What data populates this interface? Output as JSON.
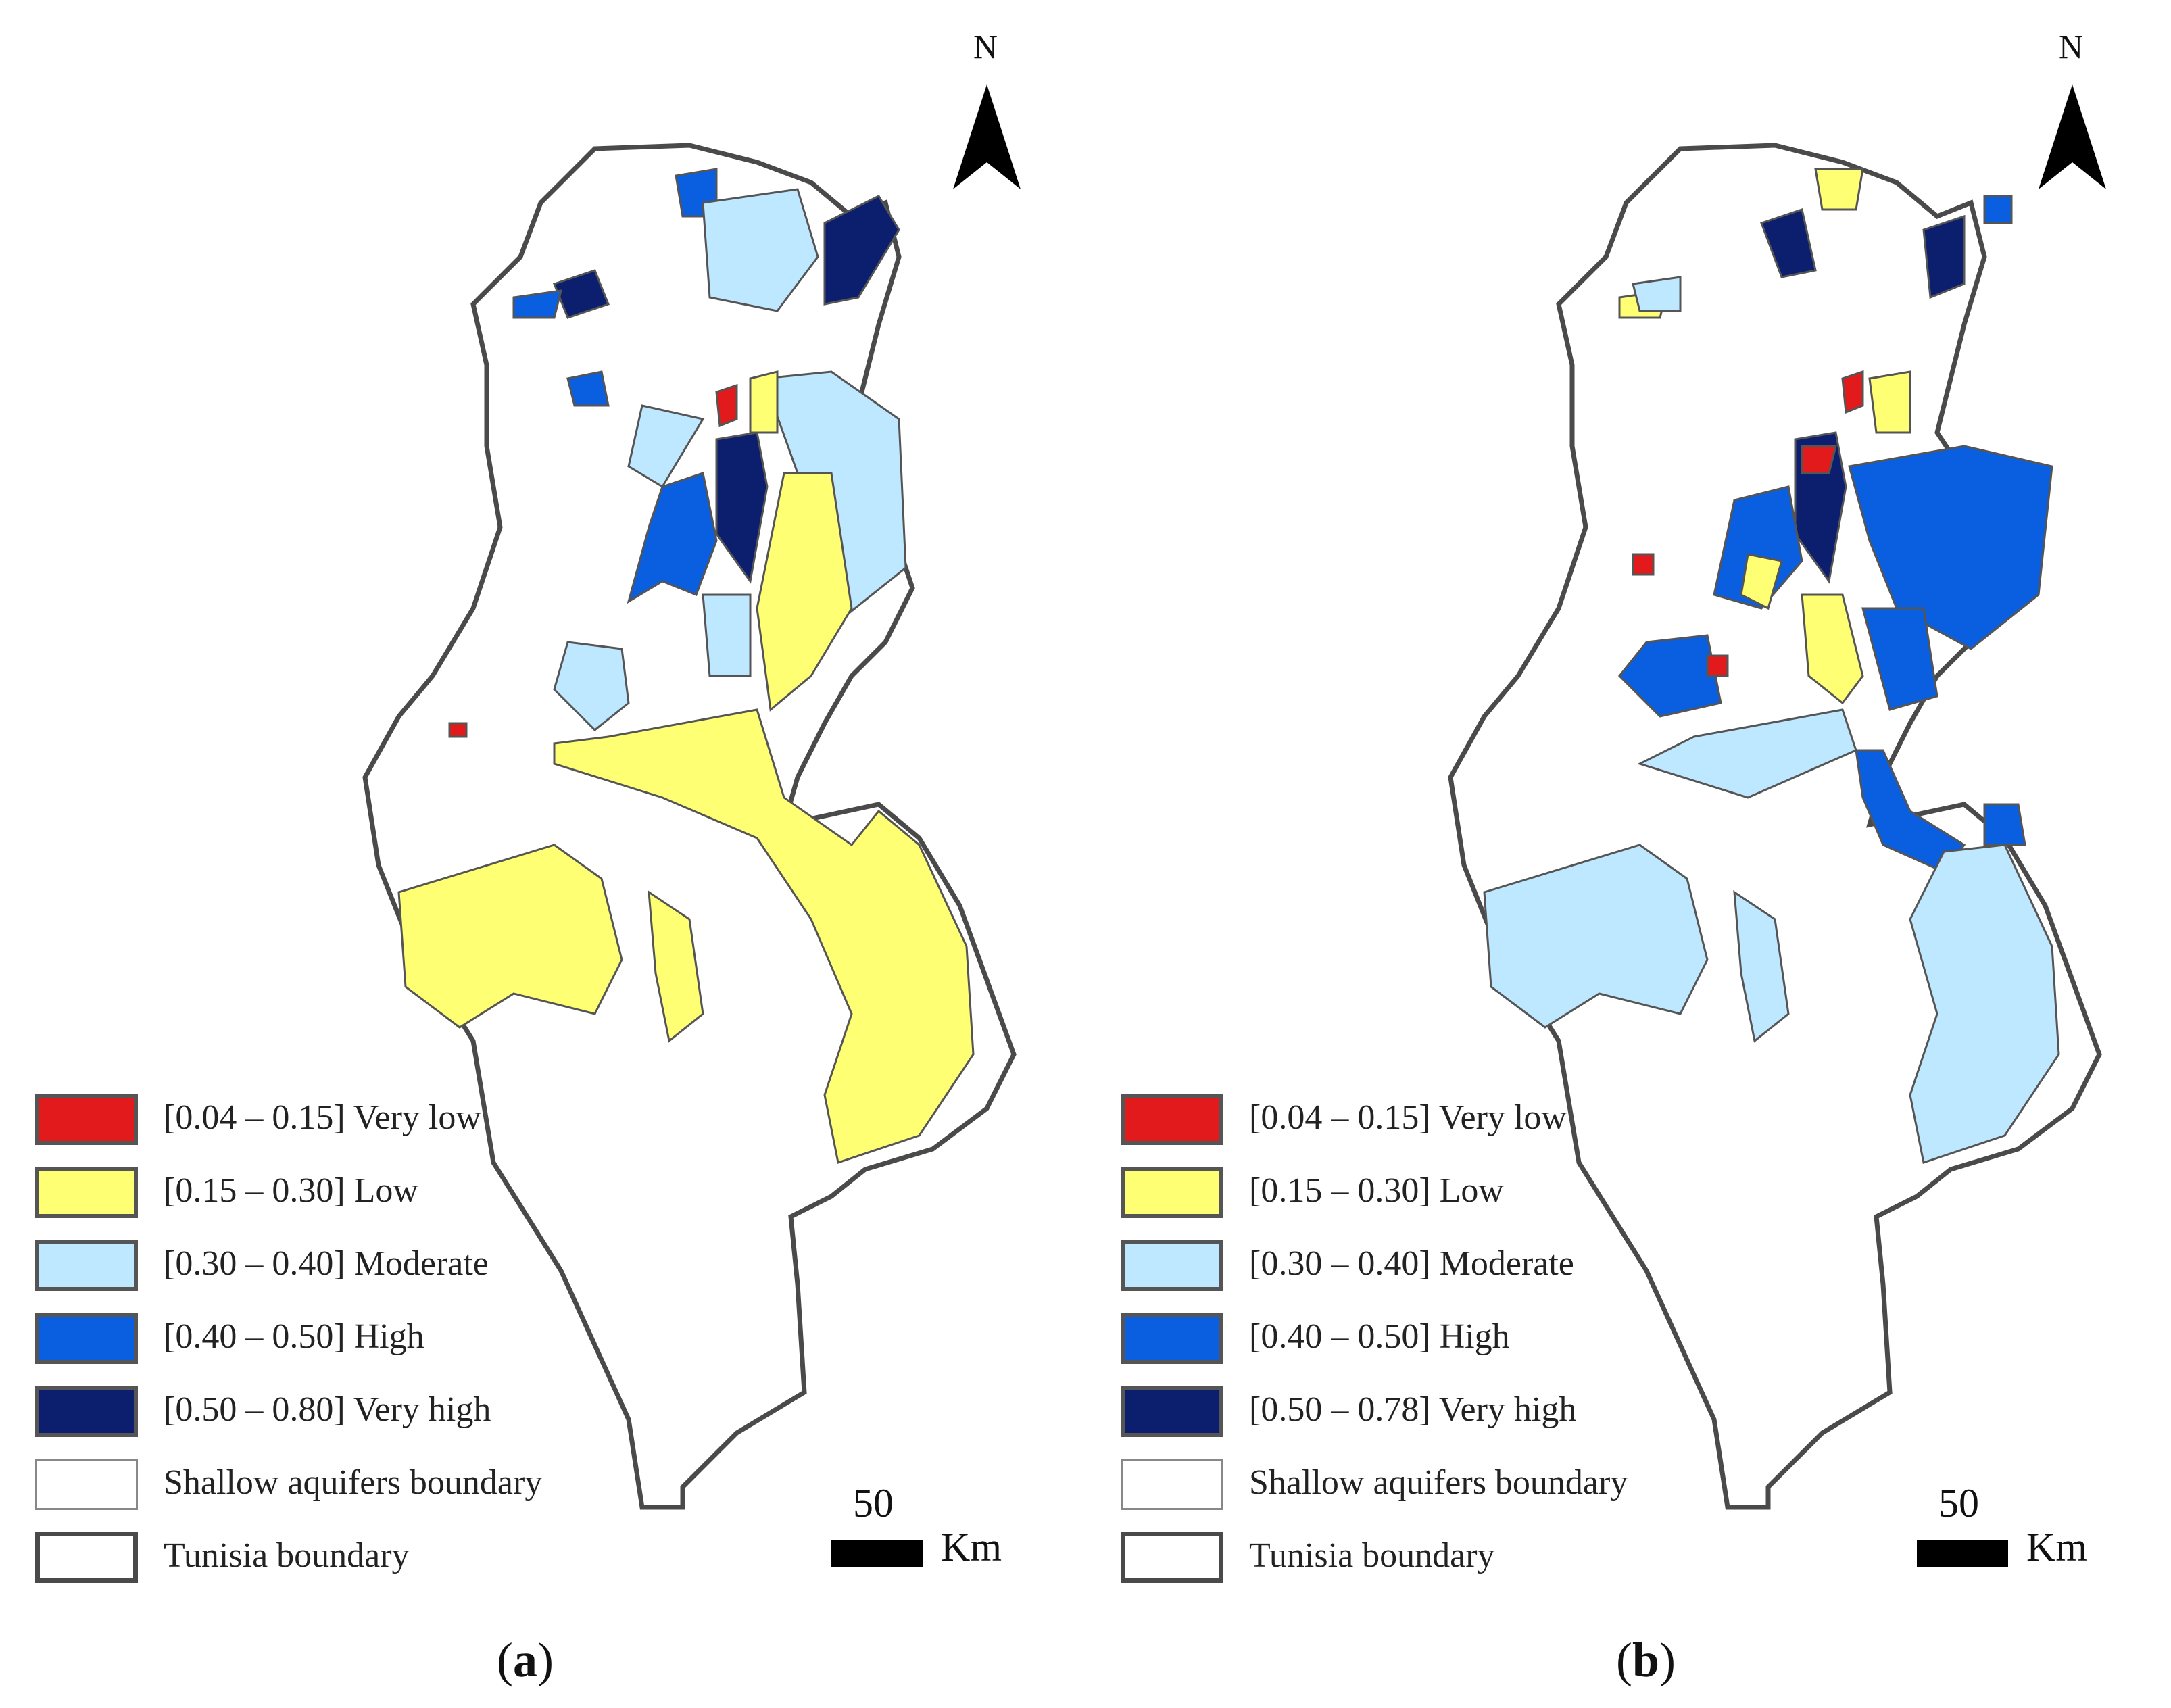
{
  "north_label": "N",
  "scale": {
    "value": "50",
    "unit": "Km"
  },
  "legend": [
    {
      "label": "[0.04 – 0.15] Very low",
      "color": "#e31a1c"
    },
    {
      "label": "[0.15 – 0.30] Low",
      "color": "#ffff73"
    },
    {
      "label": "[0.30 – 0.40] Moderate",
      "color": "#bee8ff"
    },
    {
      "label": "[0.40 – 0.50] High",
      "color": "#0a5fe0"
    },
    {
      "label": "[0.50 – 0.80] Very high",
      "color": "#0c1f6e"
    },
    {
      "label": "Shallow aquifers boundary",
      "color": "#ffffff"
    },
    {
      "label": "Tunisia boundary",
      "color": "#ffffff"
    }
  ],
  "legend_b": [
    {
      "label": "[0.04 – 0.15] Very low",
      "color": "#e31a1c"
    },
    {
      "label": "[0.15 – 0.30] Low",
      "color": "#ffff73"
    },
    {
      "label": "[0.30 – 0.40] Moderate",
      "color": "#bee8ff"
    },
    {
      "label": "[0.40 – 0.50] High",
      "color": "#0a5fe0"
    },
    {
      "label": "[0.50 – 0.78] Very high",
      "color": "#0c1f6e"
    },
    {
      "label": "Shallow aquifers boundary",
      "color": "#ffffff"
    },
    {
      "label": "Tunisia boundary",
      "color": "#ffffff"
    }
  ],
  "captions": {
    "a": {
      "open": "(",
      "letter": "a",
      "close": ")"
    },
    "b": {
      "open": "(",
      "letter": "b",
      "close": ")"
    }
  },
  "colors": {
    "very_low": "#e31a1c",
    "low": "#ffff73",
    "moderate": "#bee8ff",
    "high": "#0a5fe0",
    "very_high": "#0c1f6e",
    "boundary": "#4a4a4a"
  }
}
